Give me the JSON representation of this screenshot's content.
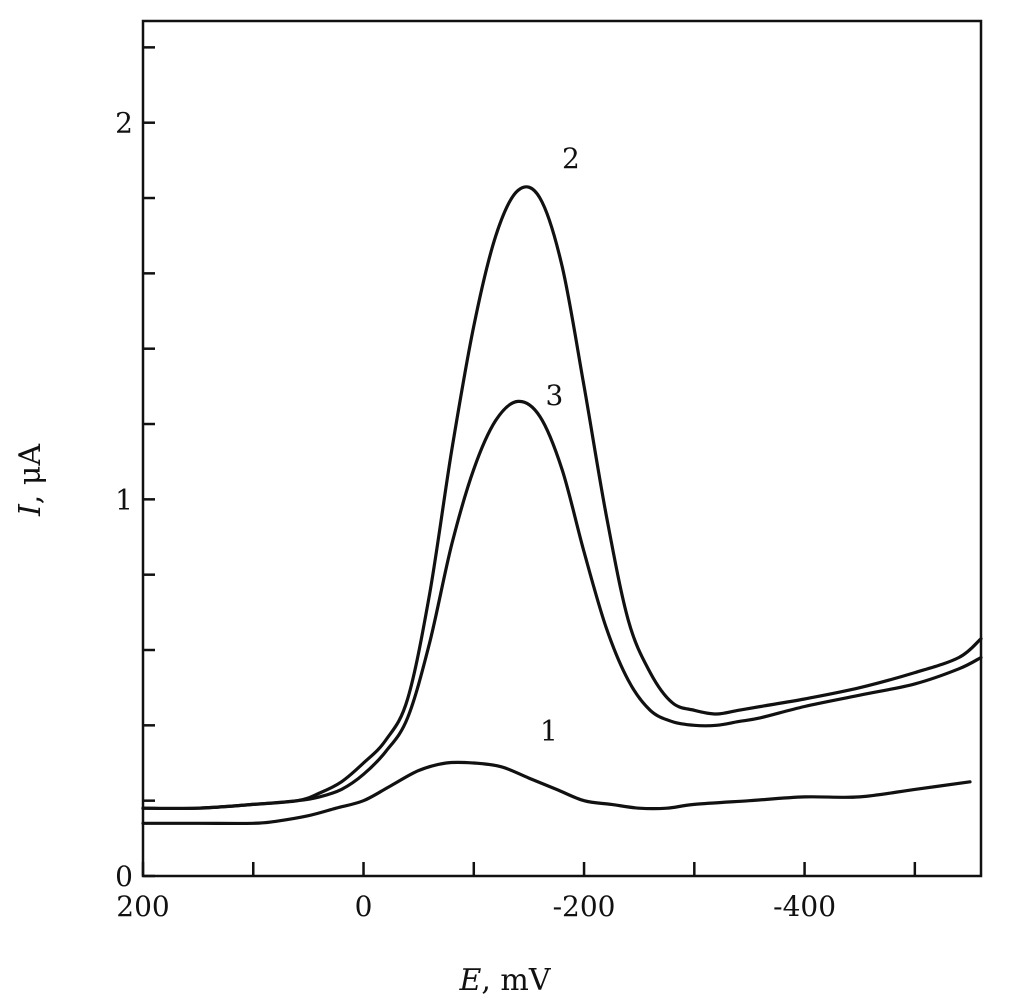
{
  "chart_data": {
    "type": "line",
    "xlabel": {
      "var": "E",
      "unit": ", mV"
    },
    "ylabel": {
      "var": "I",
      "unit": ", μA"
    },
    "xlim": [
      200,
      -560
    ],
    "ylim": [
      0,
      2.27
    ],
    "x_ticks": [
      200,
      100,
      0,
      -100,
      -200,
      -300,
      -400,
      -500
    ],
    "x_tick_labels": [
      {
        "value": 200,
        "label": "200"
      },
      {
        "value": 0,
        "label": "0"
      },
      {
        "value": -200,
        "label": "-200"
      },
      {
        "value": -400,
        "label": "-400"
      }
    ],
    "y_ticks": [
      0,
      0.2,
      0.4,
      0.6,
      0.8,
      1.0,
      1.2,
      1.4,
      1.6,
      1.8,
      2.0,
      2.2
    ],
    "y_tick_labels": [
      {
        "value": 0,
        "label": "0"
      },
      {
        "value": 1,
        "label": "1"
      },
      {
        "value": 2,
        "label": "2"
      }
    ],
    "grid": false,
    "series": [
      {
        "label": "1",
        "label_at": [
          -160,
          0.36
        ],
        "x": [
          200,
          150,
          100,
          80,
          50,
          25,
          0,
          -25,
          -50,
          -75,
          -100,
          -125,
          -150,
          -175,
          -200,
          -225,
          -250,
          -275,
          -300,
          -350,
          -400,
          -450,
          -500,
          -550
        ],
        "y": [
          0.14,
          0.14,
          0.14,
          0.145,
          0.16,
          0.18,
          0.2,
          0.24,
          0.28,
          0.3,
          0.3,
          0.29,
          0.26,
          0.23,
          0.2,
          0.19,
          0.18,
          0.18,
          0.19,
          0.2,
          0.21,
          0.21,
          0.23,
          0.25
        ]
      },
      {
        "label": "2",
        "label_at": [
          -180,
          1.88
        ],
        "x": [
          200,
          150,
          100,
          60,
          40,
          20,
          0,
          -20,
          -40,
          -60,
          -80,
          -100,
          -120,
          -140,
          -160,
          -180,
          -200,
          -220,
          -240,
          -260,
          -280,
          -300,
          -320,
          -340,
          -360,
          -400,
          -450,
          -500,
          -540,
          -560
        ],
        "y": [
          0.18,
          0.18,
          0.19,
          0.2,
          0.22,
          0.25,
          0.3,
          0.36,
          0.47,
          0.75,
          1.13,
          1.46,
          1.7,
          1.82,
          1.8,
          1.62,
          1.3,
          0.96,
          0.68,
          0.54,
          0.46,
          0.44,
          0.43,
          0.44,
          0.45,
          0.47,
          0.5,
          0.54,
          0.58,
          0.63
        ]
      },
      {
        "label": "3",
        "label_at": [
          -165,
          1.25
        ],
        "x": [
          200,
          150,
          100,
          60,
          40,
          20,
          0,
          -20,
          -40,
          -60,
          -80,
          -100,
          -120,
          -140,
          -160,
          -180,
          -200,
          -220,
          -240,
          -260,
          -280,
          -300,
          -320,
          -340,
          -360,
          -400,
          -450,
          -500,
          -540,
          -560
        ],
        "y": [
          0.18,
          0.18,
          0.19,
          0.2,
          0.21,
          0.23,
          0.27,
          0.33,
          0.42,
          0.62,
          0.88,
          1.08,
          1.21,
          1.26,
          1.22,
          1.08,
          0.86,
          0.66,
          0.52,
          0.44,
          0.41,
          0.4,
          0.4,
          0.41,
          0.42,
          0.45,
          0.48,
          0.51,
          0.55,
          0.58
        ]
      }
    ]
  }
}
